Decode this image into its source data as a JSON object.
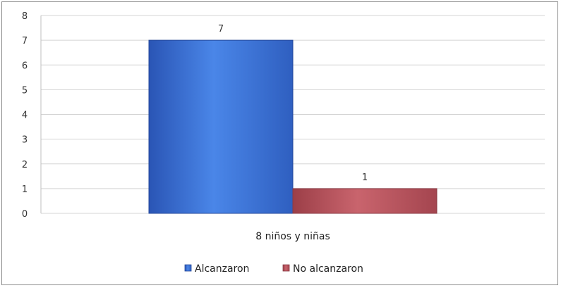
{
  "chart_data": {
    "type": "bar",
    "categories": [
      "8 niños y niñas"
    ],
    "series": [
      {
        "name": "Alcanzaron",
        "values": [
          7
        ],
        "color": "#3b6fd0"
      },
      {
        "name": "No alcanzaron",
        "values": [
          1
        ],
        "color": "#b8505a"
      }
    ],
    "ylim": [
      0,
      8
    ],
    "yticks": [
      0,
      1,
      2,
      3,
      4,
      5,
      6,
      7,
      8
    ],
    "grid": true,
    "legend_position": "bottom",
    "data_labels": true
  }
}
